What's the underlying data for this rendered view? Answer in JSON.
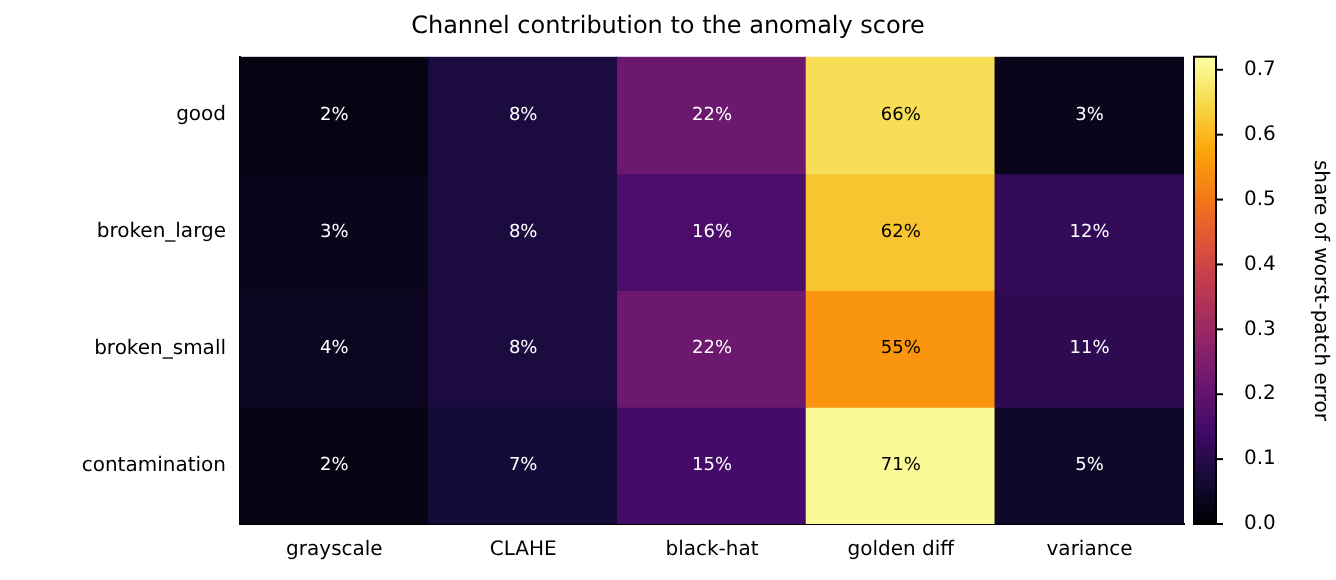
{
  "chart_data": {
    "type": "heatmap",
    "title": "Channel contribution to the anomaly score",
    "categories": [
      "grayscale",
      "CLAHE",
      "black-hat",
      "golden diff",
      "variance"
    ],
    "y_categories": [
      "good",
      "broken_large",
      "broken_small",
      "contamination"
    ],
    "cells": [
      [
        0.02,
        0.08,
        0.22,
        0.66,
        0.03
      ],
      [
        0.03,
        0.08,
        0.16,
        0.62,
        0.12
      ],
      [
        0.04,
        0.08,
        0.22,
        0.55,
        0.11
      ],
      [
        0.02,
        0.07,
        0.15,
        0.71,
        0.05
      ]
    ],
    "cell_labels": [
      [
        "2%",
        "8%",
        "22%",
        "66%",
        "3%"
      ],
      [
        "3%",
        "8%",
        "16%",
        "62%",
        "12%"
      ],
      [
        "4%",
        "8%",
        "22%",
        "55%",
        "11%"
      ],
      [
        "2%",
        "7%",
        "15%",
        "71%",
        "5%"
      ]
    ],
    "clabel": "share of worst-patch error",
    "clim": [
      0,
      0.72
    ],
    "cticks": [
      {
        "value": 0,
        "label": "0.0"
      },
      {
        "value": 0.1,
        "label": "0.1"
      },
      {
        "value": 0.2,
        "label": "0.2"
      },
      {
        "value": 0.3,
        "label": "0.3"
      },
      {
        "value": 0.4,
        "label": "0.4"
      },
      {
        "value": 0.5,
        "label": "0.5"
      },
      {
        "value": 0.6,
        "label": "0.6"
      },
      {
        "value": 0.7,
        "label": "0.7"
      }
    ]
  }
}
